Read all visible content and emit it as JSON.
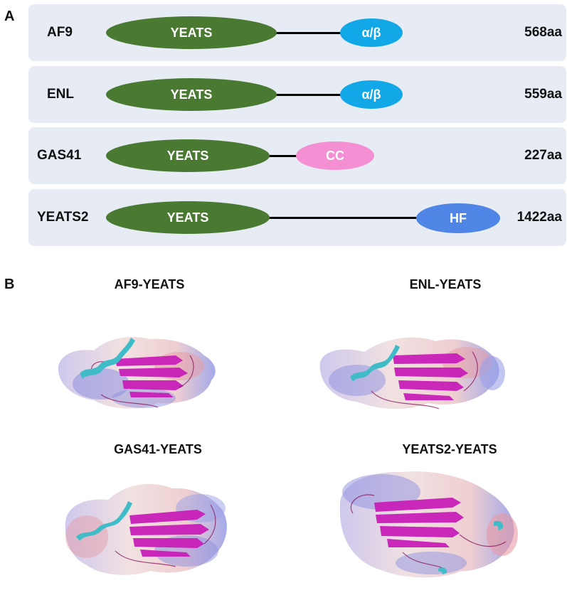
{
  "panel_a": {
    "letter": "A",
    "rows": [
      {
        "name": "AF9",
        "domains": [
          {
            "label": "YEATS"
          },
          {
            "label": "α/β"
          }
        ],
        "length": "568aa"
      },
      {
        "name": "ENL",
        "domains": [
          {
            "label": "YEATS"
          },
          {
            "label": "α/β"
          }
        ],
        "length": "559aa"
      },
      {
        "name": "GAS41",
        "domains": [
          {
            "label": "YEATS"
          },
          {
            "label": "CC"
          }
        ],
        "length": "227aa"
      },
      {
        "name": "YEATS2",
        "domains": [
          {
            "label": "YEATS"
          },
          {
            "label": "HF"
          }
        ],
        "length": "1422aa"
      }
    ]
  },
  "panel_b": {
    "letter": "B",
    "structures": [
      {
        "title": "AF9-YEATS"
      },
      {
        "title": "ENL-YEATS"
      },
      {
        "title": "GAS41-YEATS"
      },
      {
        "title": "YEATS2-YEATS"
      }
    ]
  },
  "colors": {
    "row_background": "#e6ebf4",
    "yeats": "#4a7a32",
    "alpha_beta": "#12a7e6",
    "coiled_coil": "#f48fd4",
    "helical_fold": "#4f86e6",
    "beta_strand": "#c81fb8",
    "helix": "#3fbcc8"
  }
}
